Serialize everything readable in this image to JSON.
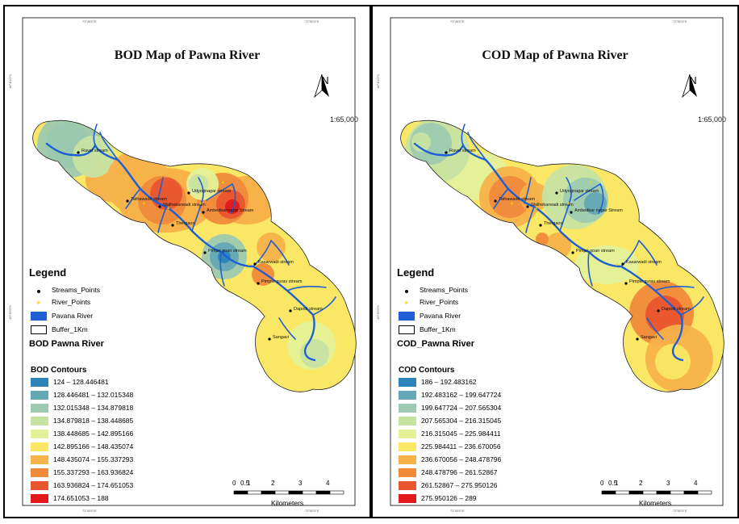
{
  "panels": [
    {
      "id": "bod",
      "title": "BOD Map of Pawna River",
      "north_letter": "N",
      "scale_text": "1:65,000",
      "coords": {
        "top_left": "73°45'0\"E",
        "top_right": "73°50'0\"E",
        "bottom_left": "73°45'0\"E",
        "bottom_right": "73°50'0\"E",
        "left_top": "18°40'0\"N",
        "left_bottom": "18°35'0\"N"
      },
      "legend_title": "Legend",
      "legend_items": [
        "Streams_Points",
        "River_Points",
        "Pavana River",
        "Buffer_1Km"
      ],
      "layer_title": "BOD Pawna River",
      "contours_title": "BOD Contours",
      "contour_classes": [
        {
          "label": "124 – 128.446481",
          "color": "#2b83ba"
        },
        {
          "label": "128.446481 – 132.015348",
          "color": "#64a8b6"
        },
        {
          "label": "132.015348 – 134.879818",
          "color": "#9dcab0"
        },
        {
          "label": "134.879818 – 138.448685",
          "color": "#c7e3a2"
        },
        {
          "label": "138.448685 – 142.895166",
          "color": "#e4f196"
        },
        {
          "label": "142.895166 – 148.435074",
          "color": "#f9e765"
        },
        {
          "label": "148.435074 – 155.337293",
          "color": "#f7b24a"
        },
        {
          "label": "155.337293 – 163.936824",
          "color": "#f08a3b"
        },
        {
          "label": "163.936824 – 174.651053",
          "color": "#e8552e"
        },
        {
          "label": "174.651053 – 188",
          "color": "#e31a1c"
        }
      ],
      "scalebar": {
        "ticks": [
          "0",
          "0.5",
          "1",
          "2",
          "3",
          "4"
        ],
        "unit": "Kilometers"
      },
      "place_labels": [
        "Ravet stream",
        "Tathawade stream",
        "Walhekarwadi stream",
        "Udyognagar stream",
        "Ambedkarnagar Stream",
        "Thergaon",
        "Pimpri goan stream",
        "Kasarwadi stream",
        "Pimple gurav stream",
        "Dapodi stream",
        "Sangavi"
      ]
    },
    {
      "id": "cod",
      "title": "COD Map of Pawna River",
      "north_letter": "N",
      "scale_text": "1:65,000",
      "coords": {
        "top_left": "73°45'0\"E",
        "top_right": "73°50'0\"E",
        "bottom_left": "73°45'0\"E",
        "bottom_right": "73°50'0\"E",
        "left_top": "18°40'0\"N",
        "left_bottom": "18°35'0\"N"
      },
      "legend_title": "Legend",
      "legend_items": [
        "Streams_Points",
        "River_Points",
        "Pavana River",
        "Buffer_1Km"
      ],
      "layer_title": "COD_Pawna River",
      "contours_title": "COD Contours",
      "contour_classes": [
        {
          "label": "186 – 192.483162",
          "color": "#2b83ba"
        },
        {
          "label": "192.483162 – 199.647724",
          "color": "#64a8b6"
        },
        {
          "label": "199.647724 – 207.565304",
          "color": "#9dcab0"
        },
        {
          "label": "207.565304 – 216.315045",
          "color": "#c7e3a2"
        },
        {
          "label": "216.315045 – 225.984411",
          "color": "#e4f196"
        },
        {
          "label": "225.984411 – 236.670056",
          "color": "#f9e765"
        },
        {
          "label": "236.670056 – 248.478796",
          "color": "#f7b24a"
        },
        {
          "label": "248.478796 – 261.52867",
          "color": "#f08a3b"
        },
        {
          "label": "261.52867 – 275.950126",
          "color": "#e8552e"
        },
        {
          "label": "275.950126 – 289",
          "color": "#e31a1c"
        }
      ],
      "scalebar": {
        "ticks": [
          "0",
          "0.5",
          "1",
          "2",
          "3",
          "4"
        ],
        "unit": "Kilometers"
      },
      "place_labels": [
        "Ravet stream",
        "Tathawade stream",
        "Walhekarwadi stream",
        "Udyognagar stream",
        "Ambedkar nagar Stream",
        "Thergaon",
        "Pimpri goan stream",
        "Kasarwadi stream",
        "Pimple gurav stream",
        "Dapodi stream",
        "Sangavi"
      ]
    }
  ]
}
